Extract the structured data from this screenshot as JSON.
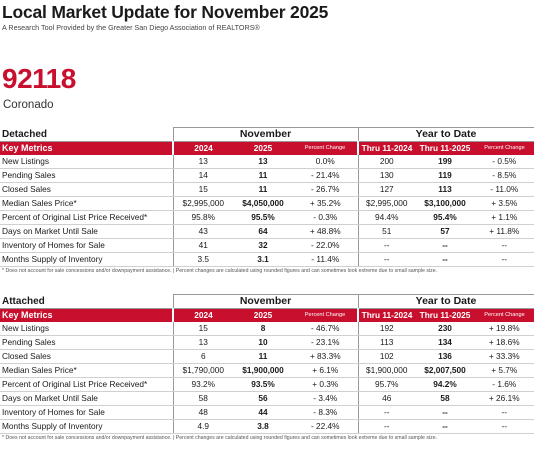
{
  "header": {
    "title": "Local Market Update for November 2025",
    "subtitle": "A Research Tool Provided by the Greater San Diego Association of REALTORS®"
  },
  "location": {
    "zip": "92118",
    "city": "Coronado"
  },
  "columns": {
    "key_metrics": "Key Metrics",
    "month_period": "November",
    "ytd_period": "Year to Date",
    "y1": "2024",
    "y2": "2025",
    "pct": "Percent Change",
    "thru1": "Thru 11-2024",
    "thru2": "Thru 11-2025"
  },
  "footnote": "* Does not account for sale concessions and/or downpayment assistance.  |  Percent changes are calculated using rounded figures and can sometimes look extreme due to small sample size.",
  "sections": [
    {
      "name": "Detached",
      "rows": [
        {
          "metric": "New Listings",
          "m24": "13",
          "m25": "13",
          "mpc": "0.0%",
          "y24": "200",
          "y25": "199",
          "ypc": "- 0.5%"
        },
        {
          "metric": "Pending Sales",
          "m24": "14",
          "m25": "11",
          "mpc": "- 21.4%",
          "y24": "130",
          "y25": "119",
          "ypc": "- 8.5%"
        },
        {
          "metric": "Closed Sales",
          "m24": "15",
          "m25": "11",
          "mpc": "- 26.7%",
          "y24": "127",
          "y25": "113",
          "ypc": "- 11.0%"
        },
        {
          "metric": "Median Sales Price*",
          "m24": "$2,995,000",
          "m25": "$4,050,000",
          "mpc": "+ 35.2%",
          "y24": "$2,995,000",
          "y25": "$3,100,000",
          "ypc": "+ 3.5%"
        },
        {
          "metric": "Percent of Original List Price Received*",
          "m24": "95.8%",
          "m25": "95.5%",
          "mpc": "- 0.3%",
          "y24": "94.4%",
          "y25": "95.4%",
          "ypc": "+ 1.1%"
        },
        {
          "metric": "Days on Market Until Sale",
          "m24": "43",
          "m25": "64",
          "mpc": "+ 48.8%",
          "y24": "51",
          "y25": "57",
          "ypc": "+ 11.8%"
        },
        {
          "metric": "Inventory of Homes for Sale",
          "m24": "41",
          "m25": "32",
          "mpc": "- 22.0%",
          "y24": "--",
          "y25": "--",
          "ypc": "--"
        },
        {
          "metric": "Months Supply of Inventory",
          "m24": "3.5",
          "m25": "3.1",
          "mpc": "- 11.4%",
          "y24": "--",
          "y25": "--",
          "ypc": "--"
        }
      ]
    },
    {
      "name": "Attached",
      "rows": [
        {
          "metric": "New Listings",
          "m24": "15",
          "m25": "8",
          "mpc": "- 46.7%",
          "y24": "192",
          "y25": "230",
          "ypc": "+ 19.8%"
        },
        {
          "metric": "Pending Sales",
          "m24": "13",
          "m25": "10",
          "mpc": "- 23.1%",
          "y24": "113",
          "y25": "134",
          "ypc": "+ 18.6%"
        },
        {
          "metric": "Closed Sales",
          "m24": "6",
          "m25": "11",
          "mpc": "+ 83.3%",
          "y24": "102",
          "y25": "136",
          "ypc": "+ 33.3%"
        },
        {
          "metric": "Median Sales Price*",
          "m24": "$1,790,000",
          "m25": "$1,900,000",
          "mpc": "+ 6.1%",
          "y24": "$1,900,000",
          "y25": "$2,007,500",
          "ypc": "+ 5.7%"
        },
        {
          "metric": "Percent of Original List Price Received*",
          "m24": "93.2%",
          "m25": "93.5%",
          "mpc": "+ 0.3%",
          "y24": "95.7%",
          "y25": "94.2%",
          "ypc": "- 1.6%"
        },
        {
          "metric": "Days on Market Until Sale",
          "m24": "58",
          "m25": "56",
          "mpc": "- 3.4%",
          "y24": "46",
          "y25": "58",
          "ypc": "+ 26.1%"
        },
        {
          "metric": "Inventory of Homes for Sale",
          "m24": "48",
          "m25": "44",
          "mpc": "- 8.3%",
          "y24": "--",
          "y25": "--",
          "ypc": "--"
        },
        {
          "metric": "Months Supply of Inventory",
          "m24": "4.9",
          "m25": "3.8",
          "mpc": "- 22.4%",
          "y24": "--",
          "y25": "--",
          "ypc": "--"
        }
      ]
    }
  ]
}
